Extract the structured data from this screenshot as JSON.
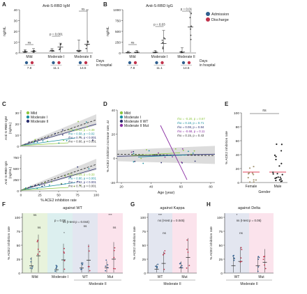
{
  "figure": {
    "panel_letters": [
      "A",
      "B",
      "C",
      "D",
      "E",
      "F",
      "G",
      "H"
    ]
  },
  "colors": {
    "admission": "#2f5f8f",
    "discharge": "#c0324b",
    "mild": "#8dc63f",
    "moderate_i": "#1a8fa0",
    "moderate_ii": "#2b2f6e",
    "moderate_ii_mut": "#8a2ea3",
    "female_male_line": "#e0405a",
    "bg_green": "#e8f3dc",
    "bg_teal": "#dcefef",
    "bg_blue": "#e3e6f0",
    "bg_pink": "#fbe3ec"
  },
  "chart_data": [
    {
      "panel": "A",
      "type": "box",
      "title": "Anti-S-RBD IgM",
      "ylabel": "ng/mL",
      "ylim": [
        0,
        40
      ],
      "yticks": [
        "0",
        "10",
        "20",
        "30",
        "40"
      ],
      "categories": [
        "Mild",
        "Moderate I",
        "Moderate II"
      ],
      "days_label": "Days in hospital",
      "days": [
        "7.8",
        "11.1",
        "14.5"
      ],
      "legend": [
        "Admission",
        "Discharge"
      ],
      "series": [
        {
          "name": "Admission",
          "medians": [
            1.2,
            1.8,
            2.0
          ],
          "maxima": [
            3,
            4,
            12
          ]
        },
        {
          "name": "Discharge",
          "medians": [
            1.5,
            5.5,
            8.0
          ],
          "maxima": [
            4,
            9,
            40
          ]
        }
      ],
      "brackets": [
        {
          "label": "ns",
          "from": 0,
          "to": 0
        },
        {
          "label": "p = 0.001",
          "from": 1,
          "to": 1
        },
        {
          "label": "ns",
          "from": 2,
          "to": 2
        }
      ]
    },
    {
      "panel": "B",
      "type": "box",
      "title": "Anti-S-RBD IgG",
      "ylabel": "ng/mL",
      "ylim": [
        0,
        1000
      ],
      "yticks": [
        "0",
        "250",
        "500",
        "750",
        "1000"
      ],
      "categories": [
        "Mild",
        "Moderate I",
        "Moderate II"
      ],
      "days_label": "Days in hospital",
      "days": [
        "7.8",
        "11.1",
        "14.5"
      ],
      "legend": [
        "Admission",
        "Discharge"
      ],
      "series": [
        {
          "name": "Admission",
          "medians": [
            10,
            15,
            20
          ],
          "maxima": [
            40,
            60,
            120
          ]
        },
        {
          "name": "Discharge",
          "medians": [
            15,
            220,
            600
          ],
          "maxima": [
            60,
            520,
            950
          ]
        }
      ],
      "brackets": [
        {
          "label": "ns",
          "from": 0,
          "to": 0
        },
        {
          "label": "p = 0.03",
          "from": 1,
          "to": 1
        },
        {
          "label": "p = 0.01",
          "from": 2,
          "to": 2
        }
      ]
    },
    {
      "panel": "C",
      "type": "scatter",
      "xlabel": "% ACE2 inhibition rate",
      "xticks": [
        "0",
        "25",
        "50",
        "75",
        "100"
      ],
      "subplots": [
        {
          "ylabel": "Anti-S-RBD IgM (ng/mL)",
          "yticks": [
            "0",
            "10",
            "20",
            "30"
          ],
          "legend": [
            "Mild",
            "Moderate I",
            "Moderate II"
          ],
          "stats": [
            {
              "rho": "rho = 0.22",
              "p": "p = 0.39"
            },
            {
              "rho": "rho = 0.58",
              "p": "p = 0.02"
            },
            {
              "rho": "rho = 0.75",
              "p": "p < 0.001"
            },
            {
              "rho": "rho = 0.66",
              "p": "p < 0.001"
            }
          ]
        },
        {
          "ylabel": "Anti-S-RBD IgG (ng/mL)",
          "yticks": [
            "0",
            "250",
            "500",
            "750"
          ],
          "stats": [
            {
              "rho": "rho = 0.25",
              "p": "p = 0.33"
            },
            {
              "rho": "rho = 0.80",
              "p": "p < 0.001"
            },
            {
              "rho": "rho = 0.92",
              "p": "p < 0.001"
            },
            {
              "rho": "rho = 0.76",
              "p": "p < 0.001"
            }
          ]
        }
      ]
    },
    {
      "panel": "D",
      "type": "scatter",
      "xlabel": "Age (year)",
      "ylabel": "% ACE2 inhibition increase rate, Δt",
      "xticks": [
        "20",
        "40",
        "60",
        "80"
      ],
      "yticks": [
        "-20",
        "0",
        "20",
        "40"
      ],
      "legend": [
        "Mild",
        "Moderate I",
        "Moderate II WT",
        "Moderate II Mut"
      ],
      "stats": [
        {
          "rho": "rho = -0.20",
          "p": "p = 0.67"
        },
        {
          "rho": "rho = 0.18",
          "p": "p = 0.71"
        },
        {
          "rho": "rho = 0.08",
          "p": "p = 0.84"
        },
        {
          "rho": "rho = -0.68",
          "p": "p = 0.11"
        },
        {
          "rho": "rho = 0.15",
          "p": "p = 0.43"
        }
      ]
    },
    {
      "panel": "E",
      "type": "scatter",
      "title": "ns",
      "xlabel": "Gender",
      "ylabel": "% ACE2 inhibition rate",
      "categories": [
        "Female",
        "Male"
      ],
      "yticks": [
        "0",
        "20",
        "40",
        "60",
        "80",
        "100"
      ],
      "means": [
        15,
        15
      ]
    },
    {
      "panel": "F",
      "type": "scatter",
      "title": "against WT",
      "ylabel": "% ACE2 inhibition rate",
      "yticks": [
        "0",
        "25",
        "50",
        "75",
        "100"
      ],
      "groups": [
        "Mild",
        "Moderate I",
        "WT",
        "Mut"
      ],
      "group_caption": "Moderate II",
      "annotations": [
        "ns",
        "p = 0.08",
        "ns",
        "***",
        "ns",
        "*",
        "ns (t-test p = 0.044)",
        "ns"
      ]
    },
    {
      "panel": "G",
      "type": "scatter",
      "title": "against Kappa",
      "ylabel": "% ACE2 inhibition rate",
      "yticks": [
        "0",
        "25",
        "50",
        "75",
        "100"
      ],
      "groups": [
        "WT",
        "Mut"
      ],
      "group_caption": "Moderate II",
      "annotations": [
        "***",
        "ns (t-test p = 0.045)",
        "ns"
      ]
    },
    {
      "panel": "H",
      "type": "scatter",
      "title": "against Delta",
      "ylabel": "% ACE2 inhibition rate",
      "yticks": [
        "0",
        "25",
        "50",
        "75",
        "100"
      ],
      "groups": [
        "WT",
        "Mut"
      ],
      "group_caption": "Moderate II",
      "annotations": [
        "*",
        "ns (t-test p = 0.05)",
        "ns"
      ]
    }
  ]
}
